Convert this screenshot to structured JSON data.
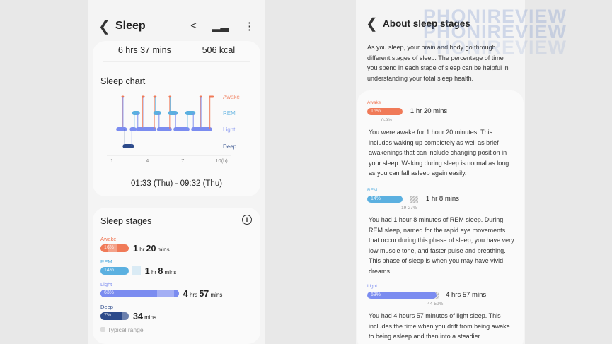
{
  "left": {
    "header": {
      "title": "Sleep",
      "back_icon": "chevron-left-icon",
      "share_icon": "share-icon",
      "stats_icon": "bar-chart-icon",
      "more_icon": "more-vertical-icon"
    },
    "summary": {
      "duration": "6 hrs 37 mins",
      "calories": "506 kcal"
    },
    "sleep_chart": {
      "title": "Sleep chart",
      "time_range": "01:33 (Thu) - 09:32 (Thu)"
    },
    "sleep_stages": {
      "title": "Sleep stages",
      "info_icon": "info-icon",
      "legend": "Typical range",
      "items": [
        {
          "name": "Awake",
          "percent": "16%",
          "h": "1",
          "hu": "hr",
          "m": "20",
          "mu": "mins",
          "value": 16,
          "typical": [
            0,
            9
          ]
        },
        {
          "name": "REM",
          "percent": "14%",
          "h": "1",
          "hu": "hr",
          "m": "8",
          "mu": "mins",
          "value": 14,
          "typical": [
            19,
            27
          ]
        },
        {
          "name": "Light",
          "percent": "63%",
          "h": "4",
          "hu": "hrs",
          "m": "57",
          "mu": "mins",
          "value": 63,
          "typical": [
            44,
            59
          ]
        },
        {
          "name": "Deep",
          "percent": "7%",
          "h": "",
          "hu": "",
          "m": "34",
          "mu": "mins",
          "value": 7,
          "typical": [
            13,
            23
          ]
        }
      ]
    }
  },
  "chart_data": {
    "type": "line",
    "title": "Sleep chart",
    "x_ticks": [
      "1",
      "4",
      "7",
      "10(h)"
    ],
    "xlim": [
      1,
      10
    ],
    "y_categories": [
      "Awake",
      "REM",
      "Light",
      "Deep"
    ],
    "segments": [
      [
        1.55,
        "Light"
      ],
      [
        1.9,
        "Awake"
      ],
      [
        1.95,
        "Light"
      ],
      [
        2.1,
        "Deep"
      ],
      [
        2.7,
        "Light"
      ],
      [
        2.9,
        "REM"
      ],
      [
        3.2,
        "Light"
      ],
      [
        3.6,
        "Awake"
      ],
      [
        3.7,
        "Light"
      ],
      [
        4.6,
        "Awake"
      ],
      [
        4.7,
        "REM"
      ],
      [
        5.0,
        "Light"
      ],
      [
        5.9,
        "Awake"
      ],
      [
        5.95,
        "REM"
      ],
      [
        6.4,
        "Light"
      ],
      [
        7.4,
        "REM"
      ],
      [
        7.9,
        "Light"
      ],
      [
        8.5,
        "Awake"
      ],
      [
        8.55,
        "Light"
      ],
      [
        9.3,
        "Awake"
      ],
      [
        9.55,
        "end"
      ]
    ],
    "colors": {
      "Awake": "#f07a58",
      "REM": "#5bb0e0",
      "Light": "#7b8cf0",
      "Deep": "#2c4a8a"
    }
  },
  "right": {
    "header": {
      "title": "About sleep stages",
      "back_icon": "chevron-left-icon"
    },
    "intro": "As you sleep, your brain and body go through different stages of sleep. The percentage of time you spend in each stage of sleep can be helpful in understanding your total sleep health.",
    "items": [
      {
        "name": "Awake",
        "percent": "16%",
        "duration": "1 hr 20 mins",
        "range": "0-9%",
        "text": "You were awake for 1 hour 20 minutes. This includes waking up completely as well as brief awakenings that can include changing position in your sleep. Waking during sleep is normal as long as you can fall asleep again easily."
      },
      {
        "name": "REM",
        "percent": "14%",
        "duration": "1 hr 8 mins",
        "range": "19-27%",
        "text": "You had 1 hour 8 minutes of REM sleep. During REM sleep, named for the rapid eye movements that occur during this phase of sleep, you have very low muscle tone, and faster pulse and breathing. This phase of sleep is when you may have vivid dreams."
      },
      {
        "name": "Light",
        "percent": "63%",
        "duration": "4 hrs 57 mins",
        "range": "44-59%",
        "text": "You had 4 hours 57 minutes of light sleep. This includes the time when you drift from being awake to being asleep and then into a steadier"
      }
    ]
  },
  "watermark": "PHONIREVIEW"
}
